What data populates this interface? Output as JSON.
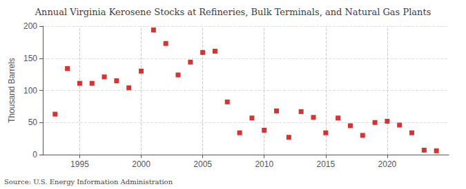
{
  "chart_data": {
    "type": "scatter",
    "title": "Annual Virginia Kerosene Stocks at Refineries, Bulk Terminals, and Natural Gas Plants",
    "ylabel": "Thousand Barrels",
    "annotation": "Source: U.S. Energy Information Administration",
    "x": [
      1993,
      1994,
      1995,
      1996,
      1997,
      1998,
      1999,
      2000,
      2001,
      2002,
      2003,
      2004,
      2005,
      2006,
      2007,
      2008,
      2009,
      2010,
      2011,
      2012,
      2013,
      2014,
      2015,
      2016,
      2017,
      2018,
      2019,
      2020,
      2021,
      2022,
      2023,
      2024
    ],
    "values": [
      63,
      134,
      111,
      111,
      121,
      115,
      104,
      130,
      194,
      173,
      124,
      144,
      159,
      161,
      82,
      34,
      57,
      38,
      68,
      27,
      67,
      58,
      34,
      57,
      45,
      30,
      50,
      52,
      46,
      34,
      7,
      6
    ],
    "color": "#cc0000",
    "marker": "square",
    "xlim": [
      1992,
      2025
    ],
    "xticks": [
      1995,
      2000,
      2005,
      2010,
      2015,
      2020
    ],
    "ylim": [
      0,
      200
    ],
    "yticks": [
      0,
      50,
      100,
      150,
      200
    ],
    "grid": true
  }
}
